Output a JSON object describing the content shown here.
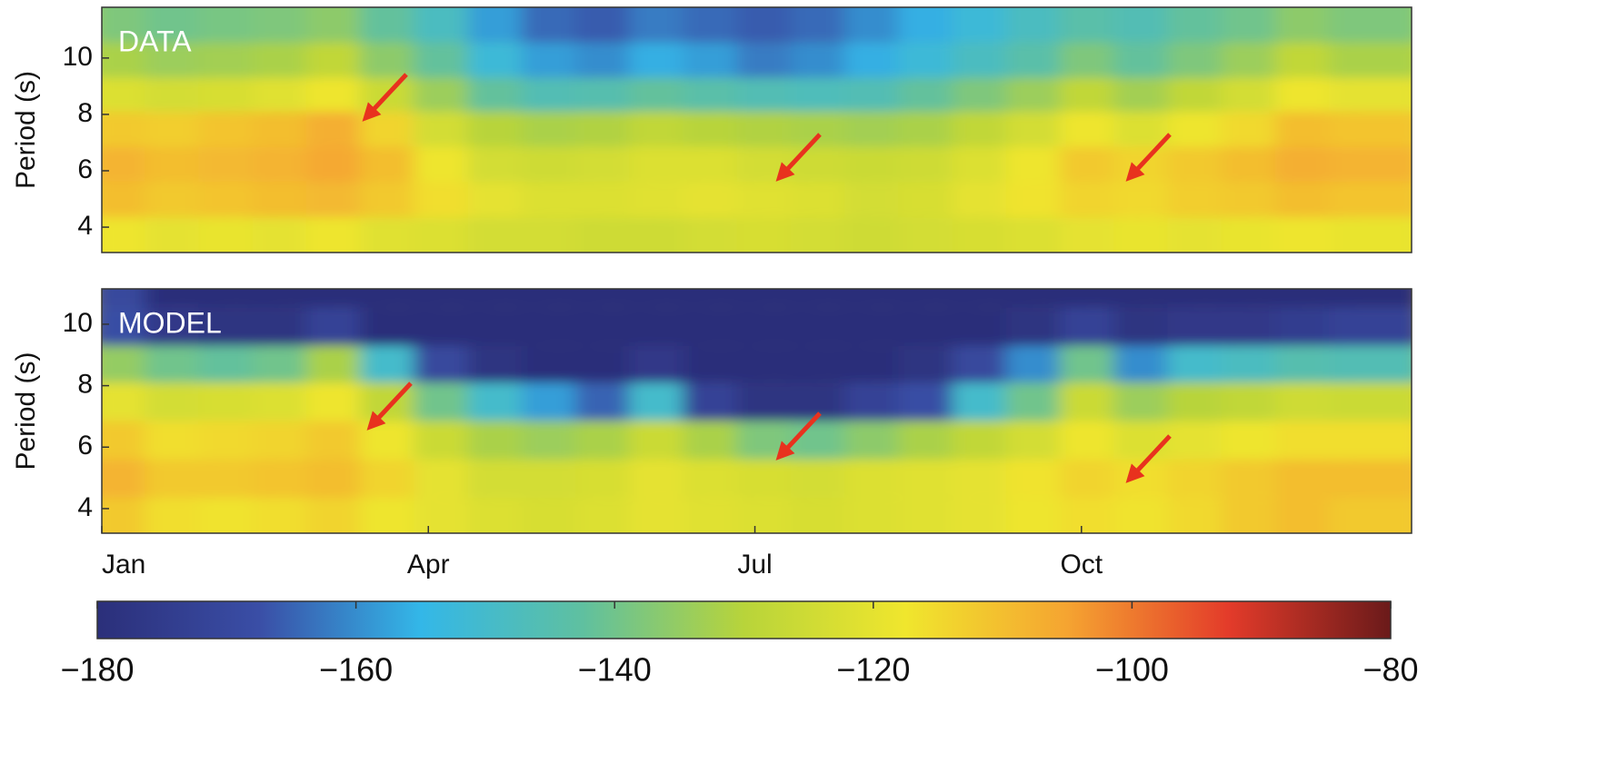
{
  "chart_data": [
    {
      "type": "heatmap",
      "annotation": "DATA",
      "ylabel": "Period (s)",
      "xlim": [
        0,
        365
      ],
      "ylim": [
        3.1,
        11.8
      ],
      "xticks": [],
      "yticks": [
        4,
        6,
        8,
        10
      ],
      "x": [
        7.5,
        22.5,
        37.5,
        52.5,
        67.5,
        82.5,
        97.5,
        112.5,
        127.5,
        142.5,
        157.5,
        172.5,
        187.5,
        202.5,
        217.5,
        232.5,
        247.5,
        262.5,
        277.5,
        292.5,
        307.5,
        322.5,
        337.5,
        352.5
      ],
      "y": [
        3.7,
        5.0,
        6.2,
        7.5,
        8.7,
        9.9,
        11.2
      ],
      "z": [
        [
          -118,
          -120,
          -119,
          -120,
          -118,
          -121,
          -122,
          -124,
          -124,
          -125,
          -125,
          -124,
          -123,
          -124,
          -125,
          -124,
          -123,
          -122,
          -120,
          -119,
          -120,
          -119,
          -118,
          -119
        ],
        [
          -110,
          -112,
          -111,
          -110,
          -109,
          -112,
          -116,
          -120,
          -122,
          -122,
          -121,
          -120,
          -121,
          -122,
          -124,
          -123,
          -120,
          -117,
          -114,
          -115,
          -113,
          -112,
          -110,
          -111
        ],
        [
          -108,
          -110,
          -109,
          -108,
          -106,
          -110,
          -118,
          -124,
          -125,
          -124,
          -122,
          -122,
          -124,
          -125,
          -126,
          -125,
          -122,
          -118,
          -112,
          -114,
          -112,
          -110,
          -107,
          -108
        ],
        [
          -112,
          -113,
          -111,
          -110,
          -107,
          -114,
          -124,
          -130,
          -132,
          -131,
          -128,
          -130,
          -131,
          -132,
          -133,
          -132,
          -128,
          -124,
          -118,
          -122,
          -118,
          -115,
          -110,
          -111
        ],
        [
          -122,
          -124,
          -123,
          -121,
          -118,
          -126,
          -134,
          -142,
          -146,
          -145,
          -142,
          -144,
          -146,
          -147,
          -146,
          -142,
          -138,
          -134,
          -128,
          -133,
          -128,
          -124,
          -118,
          -120
        ],
        [
          -132,
          -134,
          -133,
          -132,
          -128,
          -136,
          -142,
          -152,
          -158,
          -160,
          -156,
          -158,
          -162,
          -160,
          -156,
          -152,
          -148,
          -144,
          -138,
          -142,
          -138,
          -134,
          -128,
          -132
        ],
        [
          -138,
          -140,
          -139,
          -138,
          -136,
          -142,
          -148,
          -158,
          -164,
          -166,
          -162,
          -164,
          -166,
          -164,
          -160,
          -156,
          -152,
          -148,
          -144,
          -146,
          -142,
          -140,
          -136,
          -138
        ]
      ]
    },
    {
      "type": "heatmap",
      "annotation": "MODEL",
      "ylabel": "Period (s)",
      "xlim": [
        0,
        365
      ],
      "ylim": [
        3.2,
        11.15
      ],
      "xticks": [
        {
          "value": 0,
          "label": "Jan"
        },
        {
          "value": 91,
          "label": "Apr"
        },
        {
          "value": 182,
          "label": "Jul"
        },
        {
          "value": 273,
          "label": "Oct"
        }
      ],
      "yticks": [
        4,
        6,
        8,
        10
      ],
      "x": [
        7.5,
        22.5,
        37.5,
        52.5,
        67.5,
        82.5,
        97.5,
        112.5,
        127.5,
        142.5,
        157.5,
        172.5,
        187.5,
        202.5,
        217.5,
        232.5,
        247.5,
        262.5,
        277.5,
        292.5,
        307.5,
        322.5,
        337.5,
        352.5
      ],
      "y": [
        3.7,
        5.0,
        6.2,
        7.5,
        8.7,
        9.9,
        11.2
      ],
      "z": [
        [
          -112,
          -116,
          -117,
          -116,
          -114,
          -118,
          -120,
          -122,
          -123,
          -122,
          -120,
          -121,
          -122,
          -123,
          -122,
          -121,
          -120,
          -118,
          -116,
          -117,
          -115,
          -112,
          -110,
          -112
        ],
        [
          -108,
          -112,
          -112,
          -111,
          -110,
          -114,
          -120,
          -124,
          -124,
          -123,
          -120,
          -122,
          -123,
          -124,
          -122,
          -121,
          -120,
          -117,
          -114,
          -116,
          -114,
          -112,
          -110,
          -110
        ],
        [
          -112,
          -116,
          -115,
          -114,
          -112,
          -118,
          -126,
          -132,
          -134,
          -132,
          -126,
          -132,
          -138,
          -140,
          -136,
          -132,
          -128,
          -124,
          -118,
          -122,
          -120,
          -118,
          -116,
          -116
        ],
        [
          -120,
          -124,
          -123,
          -122,
          -118,
          -128,
          -140,
          -150,
          -158,
          -165,
          -150,
          -172,
          -178,
          -178,
          -172,
          -168,
          -150,
          -140,
          -126,
          -134,
          -130,
          -128,
          -125,
          -126
        ],
        [
          -135,
          -140,
          -142,
          -140,
          -132,
          -150,
          -170,
          -178,
          -180,
          -180,
          -176,
          -180,
          -180,
          -180,
          -180,
          -178,
          -170,
          -160,
          -140,
          -160,
          -150,
          -148,
          -145,
          -146
        ],
        [
          -168,
          -176,
          -178,
          -178,
          -172,
          -180,
          -180,
          -180,
          -180,
          -180,
          -180,
          -180,
          -180,
          -180,
          -180,
          -180,
          -180,
          -178,
          -172,
          -178,
          -176,
          -176,
          -174,
          -172
        ],
        [
          -170,
          -180,
          -180,
          -180,
          -180,
          -180,
          -180,
          -180,
          -180,
          -180,
          -180,
          -180,
          -180,
          -180,
          -180,
          -180,
          -180,
          -180,
          -180,
          -180,
          -180,
          -180,
          -180,
          -180
        ]
      ]
    }
  ],
  "colorbar": {
    "zlim": [
      -180,
      -80
    ],
    "zticks": [
      {
        "value": -180,
        "label": "−180"
      },
      {
        "value": -160,
        "label": "−160"
      },
      {
        "value": -140,
        "label": "−140"
      },
      {
        "value": -120,
        "label": "−120"
      },
      {
        "value": -100,
        "label": "−100"
      },
      {
        "value": -80,
        "label": "−80"
      }
    ],
    "colormap": [
      "#2b2f7a",
      "#3a4ea6",
      "#33b7e8",
      "#5fc0a0",
      "#b8d43a",
      "#f0e62d",
      "#f5a431",
      "#e33b2a",
      "#6a1a1a"
    ]
  }
}
